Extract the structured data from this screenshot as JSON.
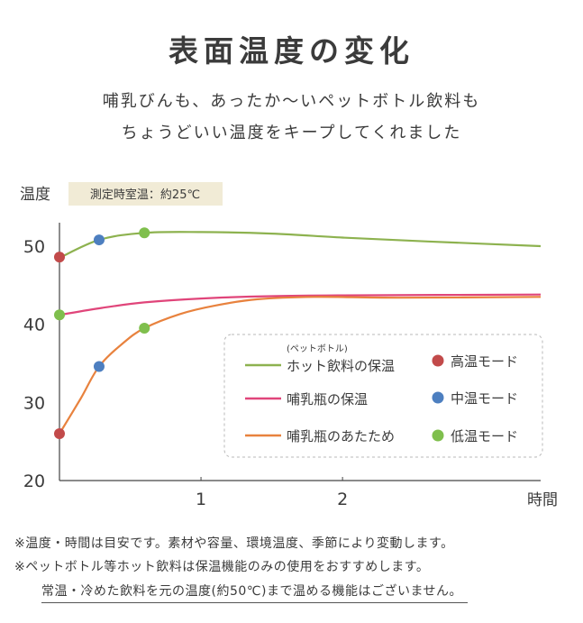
{
  "header": {
    "title": "表面温度の変化",
    "subtitle_line1": "哺乳びんも、あったか～いペットボトル飲料も",
    "subtitle_line2": "ちょうどいい温度をキープしてくれました"
  },
  "chart_data": {
    "type": "line",
    "ylabel": "温度",
    "ylabel_note": "測定時室温：約25℃",
    "xlabel": "時間",
    "xlim": [
      0,
      3.4
    ],
    "ylim": [
      20,
      53
    ],
    "xticks": [
      {
        "value": 1,
        "label": "1"
      },
      {
        "value": 2,
        "label": "2"
      }
    ],
    "yticks": [
      {
        "value": 20,
        "label": "20"
      },
      {
        "value": 30,
        "label": "30"
      },
      {
        "value": 40,
        "label": "40"
      },
      {
        "value": 50,
        "label": "50"
      }
    ],
    "grid": false,
    "legend_position": "bottom-right",
    "series": [
      {
        "name_prefix": "(ペットボトル)",
        "name": "ホット飲料の保温",
        "color": "#8db24f",
        "points": [
          [
            0,
            48.5
          ],
          [
            0.28,
            50.8
          ],
          [
            0.6,
            51.7
          ],
          [
            1.0,
            51.8
          ],
          [
            1.5,
            51.6
          ],
          [
            2.0,
            51.1
          ],
          [
            2.6,
            50.6
          ],
          [
            3.4,
            50.0
          ]
        ]
      },
      {
        "name": "哺乳瓶の保温",
        "color": "#e0457a",
        "points": [
          [
            0,
            41.2
          ],
          [
            0.3,
            42.1
          ],
          [
            0.6,
            42.8
          ],
          [
            1.0,
            43.3
          ],
          [
            1.5,
            43.6
          ],
          [
            2.0,
            43.7
          ],
          [
            3.4,
            43.8
          ]
        ]
      },
      {
        "name": "哺乳瓶のあたため",
        "color": "#e8823e",
        "points": [
          [
            0,
            26.0
          ],
          [
            0.15,
            30.5
          ],
          [
            0.28,
            34.6
          ],
          [
            0.45,
            37.6
          ],
          [
            0.6,
            39.5
          ],
          [
            0.85,
            41.3
          ],
          [
            1.1,
            42.4
          ],
          [
            1.4,
            43.2
          ],
          [
            1.8,
            43.5
          ],
          [
            2.4,
            43.4
          ],
          [
            3.4,
            43.5
          ]
        ]
      }
    ],
    "markers": [
      {
        "mode": "高温モード",
        "color": "#c24a4a",
        "points": [
          [
            0,
            48.6
          ],
          [
            0,
            26.0
          ]
        ]
      },
      {
        "mode": "中温モード",
        "color": "#4d7fc0",
        "points": [
          [
            0.28,
            50.8
          ],
          [
            0.28,
            34.6
          ]
        ]
      },
      {
        "mode": "低温モード",
        "color": "#7fbf4d",
        "points": [
          [
            0.6,
            51.7
          ],
          [
            0,
            41.2
          ],
          [
            0.6,
            39.5
          ]
        ]
      }
    ]
  },
  "notes": {
    "line1": "※温度・時間は目安です。素材や容量、環境温度、季節により変動します。",
    "line2": "※ペットボトル等ホット飲料は保温機能のみの使用をおすすめします。",
    "line3": "常温・冷めた飲料を元の温度(約50℃)まで温める機能はございません。"
  }
}
